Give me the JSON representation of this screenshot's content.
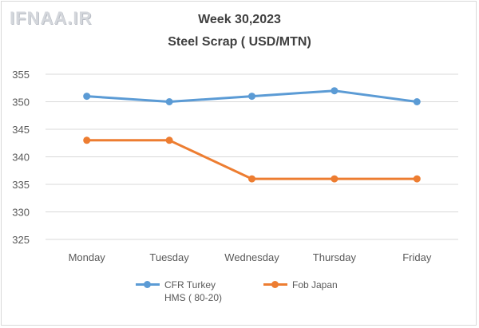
{
  "logo": {
    "text": "IFNAA.IR"
  },
  "chart_data": {
    "type": "line",
    "title": "Week 30,2023",
    "subtitle": "Steel Scrap ( USD/MTN)",
    "categories": [
      "Monday",
      "Tuesday",
      "Wednesday",
      "Thursday",
      "Friday"
    ],
    "series": [
      {
        "name": "CFR Turkey HMS ( 80-20)",
        "label_lines": [
          "CFR Turkey",
          "HMS ( 80-20)"
        ],
        "color": "#5b9bd5",
        "values": [
          351,
          350,
          351,
          352,
          350
        ]
      },
      {
        "name": "Fob Japan",
        "label_lines": [
          "Fob Japan"
        ],
        "color": "#ed7d31",
        "values": [
          343,
          343,
          336,
          336,
          336
        ]
      }
    ],
    "ylim": [
      325,
      355
    ],
    "yticks": [
      325,
      330,
      335,
      340,
      345,
      350,
      355
    ],
    "grid": true,
    "legend_position": "bottom",
    "xlabel": "",
    "ylabel": ""
  }
}
